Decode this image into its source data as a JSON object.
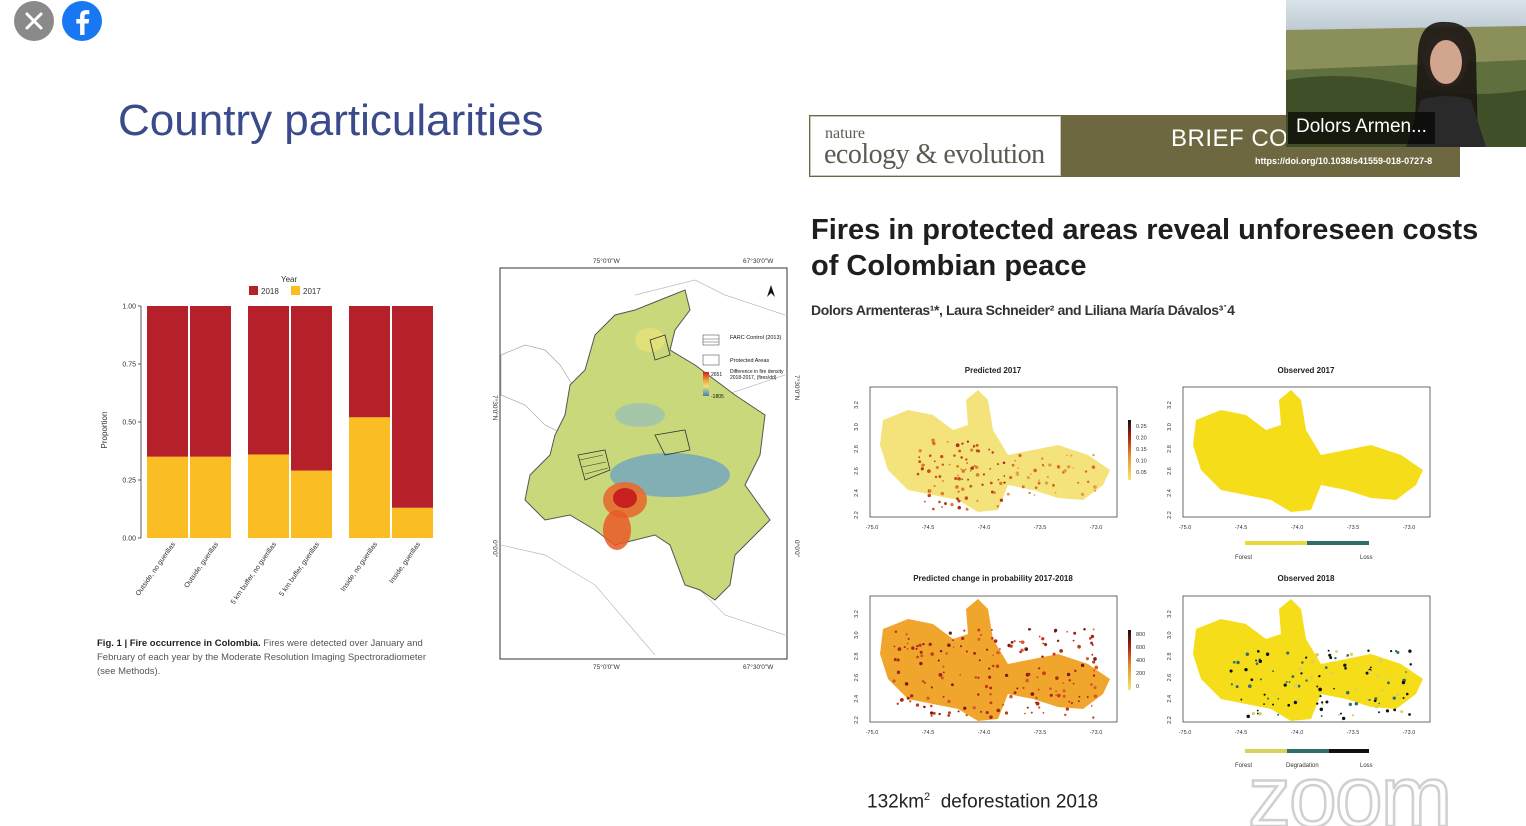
{
  "overlay": {
    "close_icon": "close-icon",
    "facebook_icon": "facebook-icon"
  },
  "slide": {
    "title": "Country particularities",
    "caption_bold": "Fig. 1 | Fire occurrence in Colombia.",
    "caption_text": " Fires were detected over January and February of each year by the Moderate Resolution Imaging Spectroradiometer (see Methods).",
    "footnote_value": "132km",
    "footnote_sup": "2",
    "footnote_text": "deforestation 2018"
  },
  "video": {
    "participant_name": "Dolors Armen..."
  },
  "journal": {
    "name_small": "nature",
    "name_big": "ecology & evolution",
    "article_type": "BRIEF CON",
    "doi": "https://doi.org/10.1038/s41559-018-0727-8",
    "article_title": "Fires in protected areas reveal unforeseen costs of Colombian peace",
    "authors": "Dolors Armenteras¹*, Laura Schneider² and Liliana María Dávalos³˙4"
  },
  "colors": {
    "title": "#3a4a8a",
    "bar_2018": "#b5202a",
    "bar_2017": "#fbbd24",
    "banner": "#6e6841"
  },
  "chart_data": [
    {
      "type": "bar",
      "title": "",
      "legend_title": "Year",
      "legend": [
        "2018",
        "2017"
      ],
      "categories": [
        "Outside, no guerillas",
        "Outside, guerillas",
        "5 km buffer, no guerillas",
        "5 km buffer, guerillas",
        "Inside, no guerillas",
        "Inside, guerillas"
      ],
      "series": [
        {
          "name": "2018",
          "values": [
            0.65,
            0.65,
            0.64,
            0.71,
            0.48,
            0.87
          ]
        },
        {
          "name": "2017",
          "values": [
            0.35,
            0.35,
            0.36,
            0.29,
            0.52,
            0.13
          ]
        }
      ],
      "ylabel": "Proportion",
      "ylim": [
        0,
        1
      ],
      "yticks": [
        "0.00",
        "0.25",
        "0.50",
        "0.75",
        "1.00"
      ]
    }
  ],
  "map": {
    "lon_ticks": [
      "75°0'0\"W",
      "67°30'0\"W"
    ],
    "lat_ticks": [
      "7°30'0\"N",
      "0°0'0\""
    ],
    "legend_farc": "FARC Control (2013)",
    "legend_protected": "Protected Areas",
    "legend_high": "2651",
    "legend_low": "-1805",
    "legend_label": "Difference in fire density 2018-2017, (fires/dd)"
  },
  "small_maps": {
    "panels": [
      {
        "title": "Predicted 2017",
        "scale": [
          "0.25",
          "0.20",
          "0.15",
          "0.10",
          "0.05"
        ]
      },
      {
        "title": "Observed 2017",
        "legend": [
          "Forest",
          "Loss"
        ]
      },
      {
        "title": "Predicted change in probability 2017-2018",
        "scale": [
          "800",
          "600",
          "400",
          "200",
          "0"
        ]
      },
      {
        "title": "Observed 2018",
        "legend": [
          "Forest",
          "Degradation",
          "Loss"
        ]
      }
    ],
    "x_ticks": [
      "-75.0",
      "-74.5",
      "-74.0",
      "-73.5",
      "-73.0"
    ],
    "y_ticks": [
      "3.2",
      "3.0",
      "2.8",
      "2.6",
      "2.4",
      "2.2"
    ]
  },
  "watermark": "zoom"
}
